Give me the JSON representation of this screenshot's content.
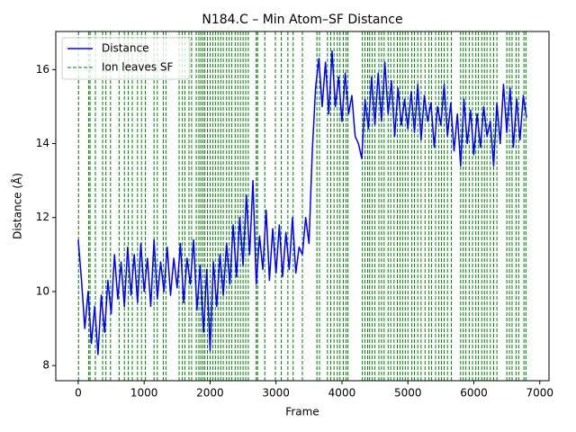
{
  "chart_data": {
    "type": "line",
    "title": "N184.C – Min Atom–SF Distance",
    "xlabel": "Frame",
    "ylabel": "Distance (Å)",
    "xlim": [
      -340,
      7140
    ],
    "ylim": [
      7.59,
      17.03
    ],
    "xticks": [
      0,
      1000,
      2000,
      3000,
      4000,
      5000,
      6000,
      7000
    ],
    "yticks": [
      8,
      10,
      12,
      14,
      16
    ],
    "legend": "upper left",
    "series": [
      {
        "name": "Distance",
        "color": "#0000ff",
        "x": [
          0,
          50,
          100,
          150,
          200,
          250,
          300,
          350,
          400,
          450,
          500,
          550,
          600,
          650,
          700,
          750,
          800,
          850,
          900,
          950,
          1000,
          1050,
          1100,
          1150,
          1200,
          1250,
          1300,
          1350,
          1400,
          1450,
          1500,
          1550,
          1600,
          1650,
          1700,
          1750,
          1800,
          1850,
          1900,
          1950,
          2000,
          2050,
          2100,
          2150,
          2200,
          2250,
          2300,
          2350,
          2400,
          2450,
          2500,
          2550,
          2600,
          2650,
          2700,
          2750,
          2800,
          2850,
          2900,
          2950,
          3000,
          3050,
          3100,
          3150,
          3200,
          3250,
          3300,
          3350,
          3400,
          3450,
          3500,
          3550,
          3600,
          3650,
          3700,
          3750,
          3800,
          3850,
          3900,
          3950,
          4000,
          4050,
          4100,
          4150,
          4200,
          4250,
          4300,
          4350,
          4400,
          4450,
          4500,
          4550,
          4600,
          4650,
          4700,
          4750,
          4800,
          4850,
          4900,
          4950,
          5000,
          5050,
          5100,
          5150,
          5200,
          5250,
          5300,
          5350,
          5400,
          5450,
          5500,
          5550,
          5600,
          5650,
          5700,
          5750,
          5800,
          5850,
          5900,
          5950,
          6000,
          6050,
          6100,
          6150,
          6200,
          6250,
          6300,
          6350,
          6400,
          6450,
          6500,
          6550,
          6600,
          6650,
          6700,
          6750,
          6800
        ],
        "values": [
          11.4,
          10.3,
          9.0,
          10.0,
          8.6,
          9.6,
          8.3,
          9.9,
          8.9,
          10.3,
          9.4,
          11.0,
          9.8,
          10.8,
          9.6,
          11.2,
          9.9,
          11.0,
          9.7,
          11.3,
          10.0,
          10.9,
          9.6,
          11.4,
          9.8,
          10.8,
          10.0,
          11.2,
          9.9,
          10.9,
          10.1,
          11.3,
          9.7,
          10.9,
          10.2,
          11.4,
          9.5,
          10.7,
          8.9,
          10.6,
          8.4,
          10.8,
          9.6,
          11.0,
          9.9,
          11.3,
          10.2,
          11.8,
          10.4,
          12.0,
          10.7,
          12.6,
          11.0,
          13.0,
          10.2,
          11.5,
          10.6,
          12.2,
          10.3,
          11.7,
          10.5,
          11.8,
          10.4,
          11.6,
          10.6,
          12.0,
          10.5,
          11.2,
          11.0,
          12.0,
          11.3,
          13.8,
          15.5,
          16.3,
          15.0,
          16.2,
          14.8,
          16.5,
          15.0,
          15.8,
          14.6,
          15.9,
          14.8,
          15.3,
          14.2,
          14.0,
          13.6,
          15.2,
          14.4,
          15.8,
          14.5,
          15.9,
          14.6,
          16.2,
          14.8,
          15.7,
          14.2,
          15.5,
          14.5,
          15.2,
          14.4,
          15.4,
          14.3,
          15.6,
          14.1,
          15.3,
          14.6,
          15.1,
          13.9,
          15.0,
          14.5,
          15.6,
          14.2,
          15.1,
          13.8,
          14.8,
          13.4,
          15.2,
          14.0,
          14.9,
          13.7,
          14.8,
          13.9,
          15.0,
          14.2,
          14.6,
          13.4,
          15.1,
          14.0,
          15.6,
          14.3,
          15.5,
          13.9,
          15.2,
          14.1,
          15.3,
          14.7
        ]
      }
    ],
    "events": {
      "name": "Ion leaves SF",
      "color": "#008000",
      "x": [
        5,
        160,
        180,
        260,
        370,
        420,
        490,
        620,
        700,
        760,
        820,
        900,
        960,
        1020,
        1150,
        1200,
        1290,
        1330,
        1530,
        1580,
        1620,
        1680,
        1720,
        1790,
        1830,
        1860,
        1890,
        1920,
        1960,
        2000,
        2040,
        2080,
        2120,
        2160,
        2200,
        2250,
        2290,
        2330,
        2380,
        2420,
        2460,
        2500,
        2540,
        2580,
        2700,
        2720,
        2830,
        2990,
        3080,
        3180,
        3260,
        3400,
        3620,
        3660,
        3780,
        3830,
        3880,
        3930,
        3970,
        4020,
        4060,
        4090,
        4310,
        4350,
        4390,
        4420,
        4460,
        4500,
        4560,
        4600,
        4640,
        4700,
        4740,
        4790,
        4840,
        4880,
        4920,
        4960,
        5000,
        5060,
        5100,
        5150,
        5200,
        5260,
        5320,
        5360,
        5420,
        5470,
        5510,
        5550,
        5600,
        5660,
        5800,
        5840,
        5880,
        5930,
        5980,
        6030,
        6070,
        6120,
        6160,
        6200,
        6250,
        6300,
        6350,
        6500,
        6540,
        6580,
        6640,
        6680,
        6760,
        6790
      ]
    }
  }
}
